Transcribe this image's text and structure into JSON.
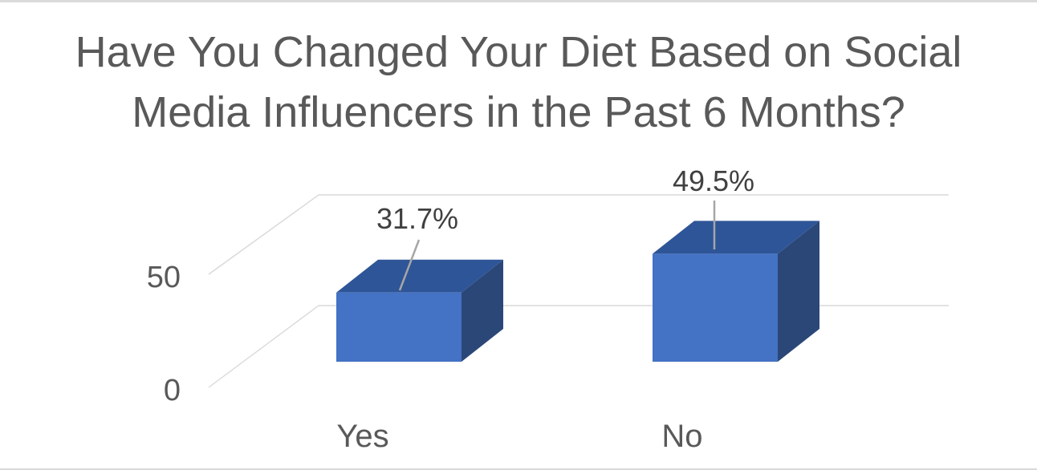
{
  "page": {
    "background": "#FFFFFF",
    "edge_line_color": "#D9D9D9"
  },
  "chart_data": {
    "type": "bar",
    "style": "3d-column",
    "title": "Have You Changed Your Diet Based on Social Media Influencers in the Past 6 Months?",
    "categories": [
      "Yes",
      "No"
    ],
    "values": [
      31.7,
      49.5
    ],
    "data_labels": [
      "31.7%",
      "49.5%"
    ],
    "xlabel": "",
    "ylabel": "",
    "ylim": [
      0,
      50
    ],
    "yticks": [
      0,
      50
    ],
    "ytick_labels": [
      "0",
      "50"
    ],
    "grid": true,
    "legend": "none",
    "colors": {
      "bar_front": "#4472C4",
      "bar_top": "#2E5597",
      "bar_side": "#2B4778"
    },
    "title_color": "#595959",
    "tick_color": "#595959",
    "category_color": "#595959",
    "data_label_color": "#404040",
    "gridline_color": "#D9D9D9",
    "leader_line_color": "#A6A6A6"
  }
}
